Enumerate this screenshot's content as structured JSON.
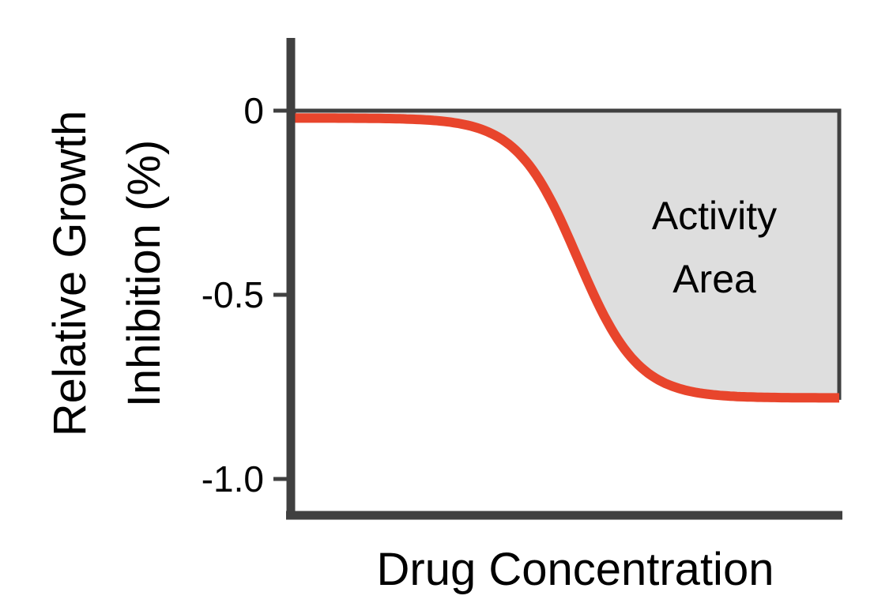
{
  "chart_data": {
    "type": "line",
    "title": "",
    "xlabel": "Drug Concentration",
    "ylabel_line1": "Relative Growth",
    "ylabel_line2": "Inhibition (%)",
    "ylim": [
      -1.1,
      0.2
    ],
    "yticks": [
      {
        "value": 0,
        "label": "0"
      },
      {
        "value": -0.5,
        "label": "-0.5"
      },
      {
        "value": -1.0,
        "label": "-1.0"
      }
    ],
    "xticks": [],
    "grid": false,
    "series": [
      {
        "color": "#e8452c",
        "curve": "sigmoid",
        "top": -0.02,
        "bottom": -0.78,
        "midpoint_fraction": 0.52,
        "steepness": 18
      }
    ],
    "shaded_region": {
      "between": "curve and y=0",
      "fill": "#dedede",
      "label_line1": "Activity",
      "label_line2": "Area"
    },
    "colors": {
      "axis": "#404040",
      "curve": "#e8452c",
      "area": "#dedede"
    }
  }
}
